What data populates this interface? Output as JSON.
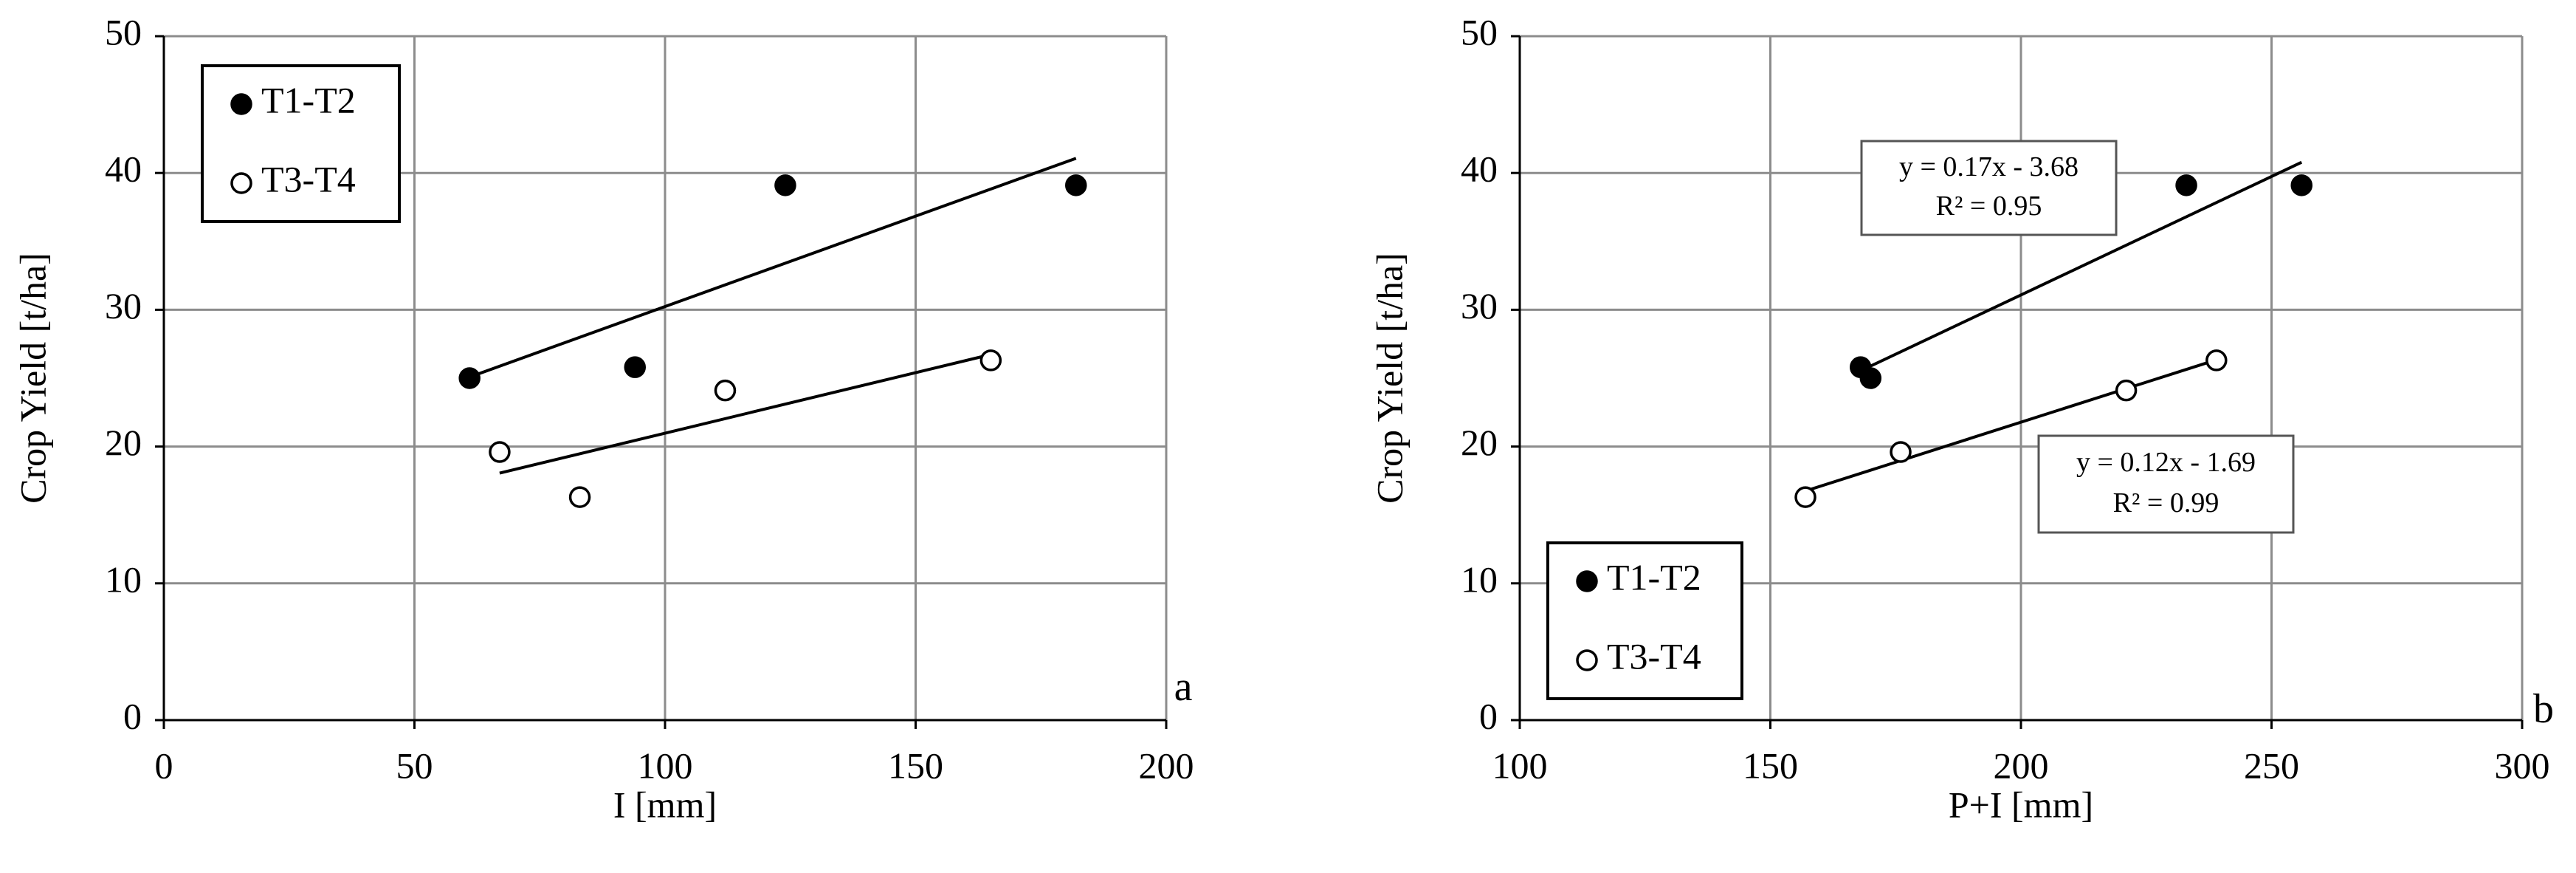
{
  "chart_data": [
    {
      "type": "scatter",
      "xlabel": "I [mm]",
      "ylabel": "Crop Yield [t/ha]",
      "panel_label": "a",
      "xlim": [
        0,
        200
      ],
      "xticks": [
        0,
        50,
        100,
        150,
        200
      ],
      "ylim": [
        0,
        50
      ],
      "yticks": [
        0,
        10,
        20,
        30,
        40,
        50
      ],
      "grid": true,
      "legend": "upper left",
      "trendline": true,
      "series": [
        {
          "name": "T1-T2",
          "color": "#000000",
          "fill": "#000000",
          "x": [
            61,
            94,
            124,
            182
          ],
          "y": [
            25,
            25.8,
            39.1,
            39.1
          ]
        },
        {
          "name": "T3-T4",
          "color": "#000000",
          "fill": "#ffffff",
          "x": [
            67,
            83,
            112,
            165
          ],
          "y": [
            19.6,
            16.3,
            24.1,
            26.3
          ]
        }
      ]
    },
    {
      "type": "scatter",
      "xlabel": "P+I [mm]",
      "ylabel": "Crop Yield [t/ha]",
      "panel_label": "b",
      "xlim": [
        100,
        300
      ],
      "xticks": [
        100,
        150,
        200,
        250,
        300
      ],
      "ylim": [
        0,
        50
      ],
      "yticks": [
        0,
        10,
        20,
        30,
        40,
        50
      ],
      "grid": true,
      "legend": "lower left",
      "trendline": true,
      "series": [
        {
          "name": "T1-T2",
          "color": "#000000",
          "fill": "#000000",
          "x": [
            168,
            170,
            233,
            256
          ],
          "y": [
            25.8,
            25,
            39.1,
            39.1
          ]
        },
        {
          "name": "T3-T4",
          "color": "#000000",
          "fill": "#ffffff",
          "x": [
            157,
            176,
            221,
            239
          ],
          "y": [
            16.3,
            19.6,
            24.1,
            26.3
          ]
        }
      ],
      "annotations": [
        [
          "y = 0.17x - 3.68",
          "R² = 0.95"
        ],
        [
          "y = 0.12x - 1.69",
          "R² = 0.99"
        ]
      ]
    }
  ]
}
